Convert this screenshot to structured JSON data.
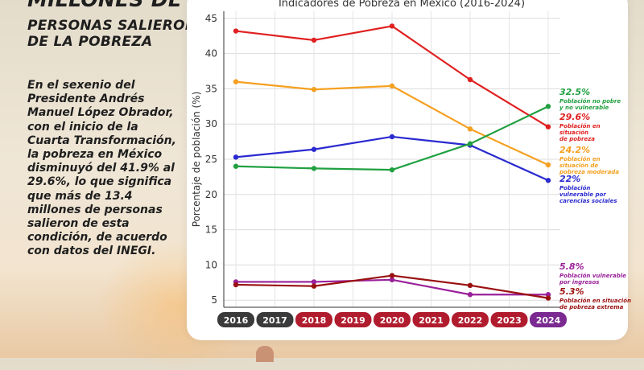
{
  "headline": {
    "line1": "MILLONES DE",
    "line2": "PERSONAS SALIERON",
    "line3": "DE LA POBREZA"
  },
  "body_text": "En el sexenio del Presidente Andrés Manuel López Obrador, con el inicio de la Cuarta Transformación, la pobreza en México disminuyó del 41.9% al 29.6%, lo que significa que más de 13.4 millones de personas salieron de esta condición, de acuerdo con datos del INEGI.",
  "colors": {
    "pobreza": "#e02020",
    "pobreza_moderada": "#f5a020",
    "carencias": "#2a2ad0",
    "no_pobre": "#20a040",
    "ingresos": "#9a209a",
    "pobreza_extrema": "#9a1010",
    "year_dark": "#3a3a3a",
    "year_red": "#b01c2e",
    "year_purple": "#7a2a90"
  },
  "chart_data": {
    "type": "line",
    "title": "Indicadores de Pobreza en México (2016-2024)",
    "xlabel": "",
    "ylabel": "Porcentaje de población (%)",
    "ylim": [
      4,
      46
    ],
    "yticks": [
      5,
      10,
      15,
      20,
      25,
      30,
      35,
      40,
      45
    ],
    "x": [
      2016,
      2018,
      2020,
      2022,
      2024
    ],
    "year_badges": [
      {
        "label": "2016",
        "style": "dark"
      },
      {
        "label": "2017",
        "style": "dark"
      },
      {
        "label": "2018",
        "style": "red"
      },
      {
        "label": "2019",
        "style": "red"
      },
      {
        "label": "2020",
        "style": "red"
      },
      {
        "label": "2021",
        "style": "red"
      },
      {
        "label": "2022",
        "style": "red"
      },
      {
        "label": "2023",
        "style": "red"
      },
      {
        "label": "2024",
        "style": "purple"
      }
    ],
    "grid": true,
    "series": [
      {
        "key": "pobreza",
        "color": "#e02020",
        "values": [
          43.2,
          41.9,
          43.9,
          36.3,
          29.6
        ],
        "end_value": "29.6%",
        "end_label": [
          "Población en",
          "situación",
          "de pobreza"
        ]
      },
      {
        "key": "moderada",
        "color": "#f5a020",
        "values": [
          36.0,
          34.9,
          35.4,
          29.3,
          24.2
        ],
        "end_value": "24.2%",
        "end_label": [
          "Población en",
          "situación de",
          "pobreza moderada"
        ]
      },
      {
        "key": "carencias",
        "color": "#2a2ad0",
        "values": [
          25.3,
          26.4,
          28.2,
          27.0,
          22.0
        ],
        "end_value": "22%",
        "end_label": [
          "Población",
          "vulnerable por",
          "carencias sociales"
        ]
      },
      {
        "key": "nopobre",
        "color": "#20a040",
        "values": [
          24.0,
          23.7,
          23.5,
          27.2,
          32.5
        ],
        "end_value": "32.5%",
        "end_label": [
          "Población no pobre",
          "y no vulnerable"
        ]
      },
      {
        "key": "ingresos",
        "color": "#9a209a",
        "values": [
          7.6,
          7.6,
          7.9,
          5.8,
          5.8
        ],
        "end_value": "5.8%",
        "end_label": [
          "Población vulnerable",
          "por ingresos"
        ]
      },
      {
        "key": "extrema",
        "color": "#9a1010",
        "values": [
          7.2,
          7.0,
          8.5,
          7.1,
          5.3
        ],
        "end_value": "5.3%",
        "end_label": [
          "Población en situación",
          "de pobreza extrema"
        ]
      }
    ]
  }
}
